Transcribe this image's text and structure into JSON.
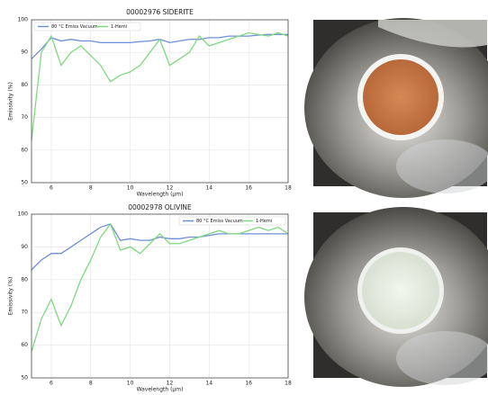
{
  "chart_data": [
    {
      "type": "line",
      "title": "00002976 SIDERITE",
      "x_label": "Wavelength (µm)",
      "y_label": "Emissivity (%)",
      "x": [
        5,
        5.5,
        6,
        6.5,
        7,
        7.5,
        8,
        8.5,
        9,
        9.5,
        10,
        10.5,
        11,
        11.5,
        12,
        12.5,
        13,
        13.5,
        14,
        14.5,
        15,
        15.5,
        16,
        16.5,
        17,
        17.5,
        18
      ],
      "series": [
        {
          "name": "80 °C Emiss Vacuum",
          "color": "#6f8fd8",
          "values": [
            88,
            91,
            94.5,
            93.5,
            94,
            93.5,
            93.5,
            93,
            93,
            93,
            93,
            93.3,
            93.5,
            94,
            93,
            93.5,
            94,
            94,
            94.5,
            94.5,
            95,
            95,
            95,
            95.3,
            95.5,
            95.5,
            95.5
          ]
        },
        {
          "name": "1-Hemi",
          "color": "#7fd97f",
          "values": [
            63,
            90,
            95,
            86,
            90,
            92,
            89,
            86,
            81,
            83,
            84,
            86,
            90,
            94,
            86,
            88,
            90,
            95,
            92,
            93,
            94,
            95,
            96,
            95.5,
            95,
            96,
            95
          ]
        }
      ],
      "xlim": [
        5,
        18
      ],
      "xticks": [
        6,
        8,
        10,
        12,
        14,
        16,
        18
      ],
      "ylim": [
        50,
        100
      ],
      "yticks": [
        50,
        60,
        70,
        80,
        90,
        100
      ],
      "grid": true,
      "legend": "upper left"
    },
    {
      "type": "line",
      "title": "00002978 OLIVINE",
      "x_label": "Wavelength (µm)",
      "y_label": "Emissivity (%)",
      "x": [
        5,
        5.5,
        6,
        6.5,
        7,
        7.5,
        8,
        8.5,
        9,
        9.5,
        10,
        10.5,
        11,
        11.5,
        12,
        12.5,
        13,
        13.5,
        14,
        14.5,
        15,
        15.5,
        16,
        16.5,
        17,
        17.5,
        18
      ],
      "series": [
        {
          "name": "80 °C Emiss Vacuum",
          "color": "#6f8fd8",
          "values": [
            83,
            86,
            88,
            88,
            90,
            92,
            94,
            96,
            97,
            92,
            92.5,
            92,
            92,
            93,
            92.5,
            92.5,
            93,
            93,
            93.5,
            94,
            94,
            94,
            94,
            94,
            94,
            94,
            94
          ]
        },
        {
          "name": "1-Hemi",
          "color": "#7fd97f",
          "values": [
            58,
            68,
            74,
            66,
            72,
            80,
            86,
            93,
            97,
            89,
            90,
            88,
            91,
            94,
            91,
            91,
            92,
            93,
            94,
            95,
            94,
            94,
            95,
            96,
            95,
            96,
            94
          ]
        }
      ],
      "xlim": [
        5,
        18
      ],
      "xticks": [
        6,
        8,
        10,
        12,
        14,
        16,
        18
      ],
      "ylim": [
        50,
        100
      ],
      "yticks": [
        50,
        60,
        70,
        80,
        90,
        100
      ],
      "grid": true,
      "legend": "upper right"
    }
  ]
}
